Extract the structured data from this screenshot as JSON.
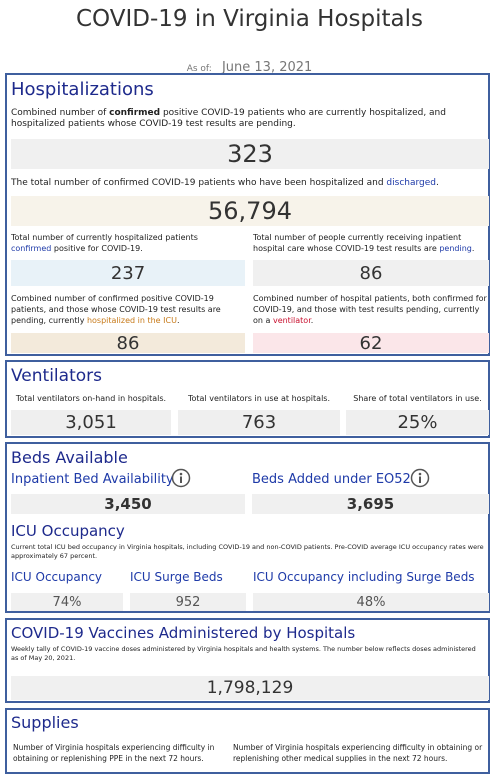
{
  "header": {
    "title": "COVID-19 in Virginia Hospitals",
    "as_of_label": "As of:",
    "as_of_date": "June 13, 2021"
  },
  "hospitalizations": {
    "title": "Hospitalizations",
    "combined": {
      "description": [
        "Combined number of ",
        "confirmed",
        " positive COVID-19 patients who are currently hospitalized, and hospitalized patients whose COVID-19 test results are pending."
      ],
      "value": "323"
    },
    "discharged": {
      "description": [
        "The total number of confirmed COVID-19 patients who have been hospitalized and ",
        "discharged",
        "."
      ],
      "value": "56,794"
    },
    "confirmed": {
      "description": [
        "Total number of currently hospitalized patients ",
        "confirmed",
        " positive for COVID-19."
      ],
      "value": "237"
    },
    "pending": {
      "description": [
        "Total number of people currently receiving inpatient hospital care whose COVID-19 test results are ",
        "pending",
        "."
      ],
      "value": "86"
    },
    "icu": {
      "description": [
        "Combined number of confirmed positive COVID-19 patients, and those whose COVID-19 test results are pending, currently ",
        "hospitalized in the ICU",
        "."
      ],
      "value": "86"
    },
    "ventilator": {
      "description": [
        "Combined number of hospital patients, both confirmed for COVID-19, and those with test results pending, currently on a ",
        "ventilator",
        "."
      ],
      "value": "62"
    }
  },
  "ventilators": {
    "title": "Ventilators",
    "items": [
      {
        "label": "Total ventilators on-hand in hospitals.",
        "value": "3,051"
      },
      {
        "label": "Total ventilators in use at hospitals.",
        "value": "763"
      },
      {
        "label": "Share of total ventilators in use.",
        "value": "25%"
      }
    ]
  },
  "beds": {
    "title": "Beds Available",
    "items": [
      {
        "label": "Inpatient Bed Availability",
        "value": "3,450"
      },
      {
        "label": "Beds Added under EO52",
        "value": "3,695"
      }
    ],
    "icu": {
      "title": "ICU Occupancy",
      "description": "Current total ICU bed occupancy in Virginia hospitals, including COVID-19 and non-COVID patients. Pre-COVID average ICU occupancy rates were approximately 67 percent.",
      "items": [
        {
          "label": "ICU Occupancy",
          "value": "74%"
        },
        {
          "label": "ICU Surge Beds",
          "value": "952"
        },
        {
          "label": "ICU Occupancy including Surge Beds",
          "value": "48%"
        }
      ]
    }
  },
  "vaccines": {
    "title": "COVID-19 Vaccines Administered by Hospitals",
    "description": "Weekly tally of COVID-19 vaccine doses administered by Virginia hospitals and health systems. The number below reflects doses administered as of May 20, 2021.",
    "value": "1,798,129"
  },
  "supplies": {
    "title": "Supplies",
    "items": [
      "Number of Virginia hospitals experiencing difficulty in obtaining or replenishing PPE in the next 72 hours.",
      "Number of Virginia hospitals experiencing difficulty in obtaining or replenishing other medical supplies in the next 72 hours."
    ]
  }
}
